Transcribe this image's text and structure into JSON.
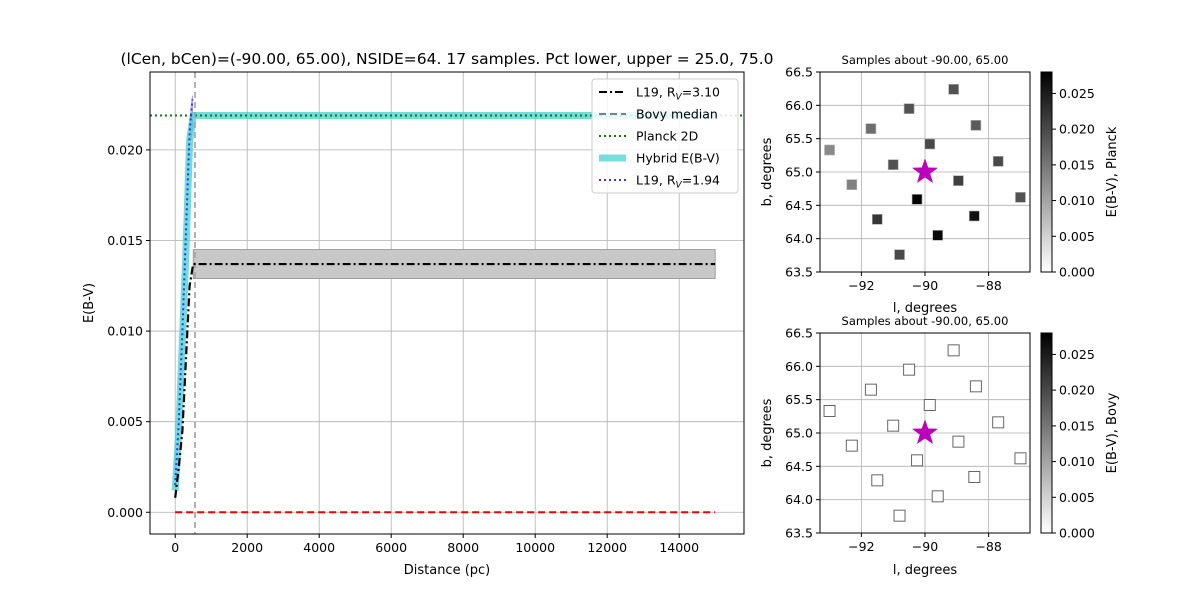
{
  "chart_data": [
    {
      "type": "line",
      "title": "(lCen, bCen)=(-90.00, 65.00), NSIDE=64. 17 samples. Pct lower, upper = 25.0, 75.0",
      "xlabel": "Distance (pc)",
      "ylabel": "E(B-V)",
      "xlim": [
        -700,
        15800
      ],
      "ylim": [
        -0.0012,
        0.0243
      ],
      "xticks": [
        "0",
        "2000",
        "4000",
        "6000",
        "8000",
        "10000",
        "12000",
        "14000"
      ],
      "xtick_values": [
        0,
        2000,
        4000,
        6000,
        8000,
        10000,
        12000,
        14000
      ],
      "yticks": [
        "0.000",
        "0.005",
        "0.010",
        "0.015",
        "0.020"
      ],
      "ytick_values": [
        0,
        0.005,
        0.01,
        0.015,
        0.02
      ],
      "grid": true,
      "legend_position": "top-right",
      "legend": [
        {
          "label": "L19, R",
          "sub": "V",
          "suffix": "=3.10",
          "color": "#000000",
          "style": "dashdot"
        },
        {
          "label": "Bovy median",
          "sub": "",
          "suffix": "",
          "color": "#808080",
          "style": "dashed"
        },
        {
          "label": "Planck 2D",
          "sub": "",
          "suffix": "",
          "color": "#008000",
          "style": "dotted"
        },
        {
          "label": "Hybrid E(B-V)",
          "sub": "",
          "suffix": "",
          "color": "#40d0d0",
          "style": "thick"
        },
        {
          "label": "L19, R",
          "sub": "V",
          "suffix": "=1.94",
          "color": "#3333ee",
          "style": "dotted"
        }
      ],
      "series": [
        {
          "name": "L19, RV=3.10",
          "color": "#000000",
          "style": "dashdot",
          "x": [
            0,
            100,
            200,
            300,
            400,
            500,
            15000
          ],
          "y": [
            0.0008,
            0.0025,
            0.0045,
            0.0085,
            0.0125,
            0.0137,
            0.0137
          ]
        },
        {
          "name": "L19 RV=3.10 range",
          "color": "#b0b0b0",
          "style": "band",
          "x": [
            500,
            15000
          ],
          "y_low": [
            0.0129,
            0.0129
          ],
          "y_high": [
            0.0145,
            0.0145
          ]
        },
        {
          "name": "Hybrid E(B-V)",
          "color": "#40d0d0",
          "style": "thick",
          "x": [
            0,
            100,
            200,
            300,
            400,
            500,
            15000
          ],
          "y": [
            0.0012,
            0.0045,
            0.0095,
            0.0145,
            0.0205,
            0.0219,
            0.0219
          ]
        },
        {
          "name": "L19, RV=1.94",
          "color": "#3333ee",
          "style": "dotted",
          "x": [
            0,
            100,
            200,
            300,
            400,
            480
          ],
          "y": [
            0.0015,
            0.005,
            0.01,
            0.0155,
            0.021,
            0.0228
          ]
        },
        {
          "name": "L19 RV=1.94 range",
          "color": "#8080ff",
          "style": "band",
          "x": [
            430,
            480
          ],
          "y_low": [
            0.0205,
            0.0212
          ],
          "y_high": [
            0.0222,
            0.023
          ]
        },
        {
          "name": "zero line",
          "color": "#ee0000",
          "style": "dashed",
          "x": [
            0,
            15000
          ],
          "y": [
            0,
            0
          ]
        }
      ],
      "hlines": [
        {
          "name": "Planck 2D",
          "y": 0.0219,
          "color": "#008000",
          "style": "dotted"
        }
      ],
      "vlines": [
        {
          "name": "Bovy median",
          "x": 550,
          "color": "#a0a0a0",
          "style": "dashed"
        }
      ]
    },
    {
      "type": "scatter",
      "title": "Samples about -90.00, 65.00",
      "xlabel": "l, degrees",
      "ylabel": "b, degrees",
      "xlim": [
        -93.3,
        -86.7
      ],
      "ylim": [
        63.5,
        66.5
      ],
      "xticks": [
        "−92",
        "−90",
        "−88"
      ],
      "xtick_values": [
        -92,
        -90,
        -88
      ],
      "yticks": [
        "63.5",
        "64.0",
        "64.5",
        "65.0",
        "65.5",
        "66.0",
        "66.5"
      ],
      "ytick_values": [
        63.5,
        64.0,
        64.5,
        65.0,
        65.5,
        66.0,
        66.5
      ],
      "grid": true,
      "colorbar_label": "E(B-V), Planck",
      "colorbar_ticks": [
        "0.000",
        "0.005",
        "0.010",
        "0.015",
        "0.020",
        "0.025"
      ],
      "colorbar_tick_values": [
        0,
        0.005,
        0.01,
        0.015,
        0.02,
        0.025
      ],
      "colorbar_range": [
        0,
        0.028
      ],
      "filled": true,
      "center": {
        "l": -90.0,
        "b": 65.0,
        "color": "#bb00bb"
      },
      "points": [
        {
          "l": -89.1,
          "b": 66.24,
          "v": 0.019
        },
        {
          "l": -90.5,
          "b": 65.95,
          "v": 0.019
        },
        {
          "l": -91.7,
          "b": 65.65,
          "v": 0.016
        },
        {
          "l": -88.4,
          "b": 65.7,
          "v": 0.018
        },
        {
          "l": -89.85,
          "b": 65.42,
          "v": 0.02
        },
        {
          "l": -93.0,
          "b": 65.33,
          "v": 0.013
        },
        {
          "l": -91.0,
          "b": 65.11,
          "v": 0.019
        },
        {
          "l": -87.7,
          "b": 65.16,
          "v": 0.02
        },
        {
          "l": -88.95,
          "b": 64.87,
          "v": 0.021
        },
        {
          "l": -92.3,
          "b": 64.81,
          "v": 0.014
        },
        {
          "l": -87.0,
          "b": 64.62,
          "v": 0.019
        },
        {
          "l": -90.25,
          "b": 64.59,
          "v": 0.028
        },
        {
          "l": -91.5,
          "b": 64.29,
          "v": 0.022
        },
        {
          "l": -88.45,
          "b": 64.34,
          "v": 0.026
        },
        {
          "l": -89.6,
          "b": 64.05,
          "v": 0.027
        },
        {
          "l": -90.8,
          "b": 63.76,
          "v": 0.02
        }
      ]
    },
    {
      "type": "scatter",
      "title": "Samples about -90.00, 65.00",
      "xlabel": "l, degrees",
      "ylabel": "b, degrees",
      "xlim": [
        -93.3,
        -86.7
      ],
      "ylim": [
        63.5,
        66.5
      ],
      "xticks": [
        "−92",
        "−90",
        "−88"
      ],
      "xtick_values": [
        -92,
        -90,
        -88
      ],
      "yticks": [
        "63.5",
        "64.0",
        "64.5",
        "65.0",
        "65.5",
        "66.0",
        "66.5"
      ],
      "ytick_values": [
        63.5,
        64.0,
        64.5,
        65.0,
        65.5,
        66.0,
        66.5
      ],
      "grid": true,
      "colorbar_label": "E(B-V), Bovy",
      "colorbar_ticks": [
        "0.000",
        "0.005",
        "0.010",
        "0.015",
        "0.020",
        "0.025"
      ],
      "colorbar_tick_values": [
        0,
        0.005,
        0.01,
        0.015,
        0.02,
        0.025
      ],
      "colorbar_range": [
        0,
        0.028
      ],
      "filled": false,
      "center": {
        "l": -90.0,
        "b": 65.0,
        "color": "#bb00bb"
      },
      "points": [
        {
          "l": -89.1,
          "b": 66.24,
          "v": 0.0
        },
        {
          "l": -90.5,
          "b": 65.95,
          "v": 0.0
        },
        {
          "l": -91.7,
          "b": 65.65,
          "v": 0.0
        },
        {
          "l": -88.4,
          "b": 65.7,
          "v": 0.0
        },
        {
          "l": -89.85,
          "b": 65.42,
          "v": 0.0
        },
        {
          "l": -93.0,
          "b": 65.33,
          "v": 0.0
        },
        {
          "l": -91.0,
          "b": 65.11,
          "v": 0.0
        },
        {
          "l": -87.7,
          "b": 65.16,
          "v": 0.0
        },
        {
          "l": -88.95,
          "b": 64.87,
          "v": 0.0
        },
        {
          "l": -92.3,
          "b": 64.81,
          "v": 0.0
        },
        {
          "l": -87.0,
          "b": 64.62,
          "v": 0.0
        },
        {
          "l": -90.25,
          "b": 64.59,
          "v": 0.0
        },
        {
          "l": -91.5,
          "b": 64.29,
          "v": 0.0
        },
        {
          "l": -88.45,
          "b": 64.34,
          "v": 0.0
        },
        {
          "l": -89.6,
          "b": 64.05,
          "v": 0.0
        },
        {
          "l": -90.8,
          "b": 63.76,
          "v": 0.0
        }
      ]
    }
  ]
}
